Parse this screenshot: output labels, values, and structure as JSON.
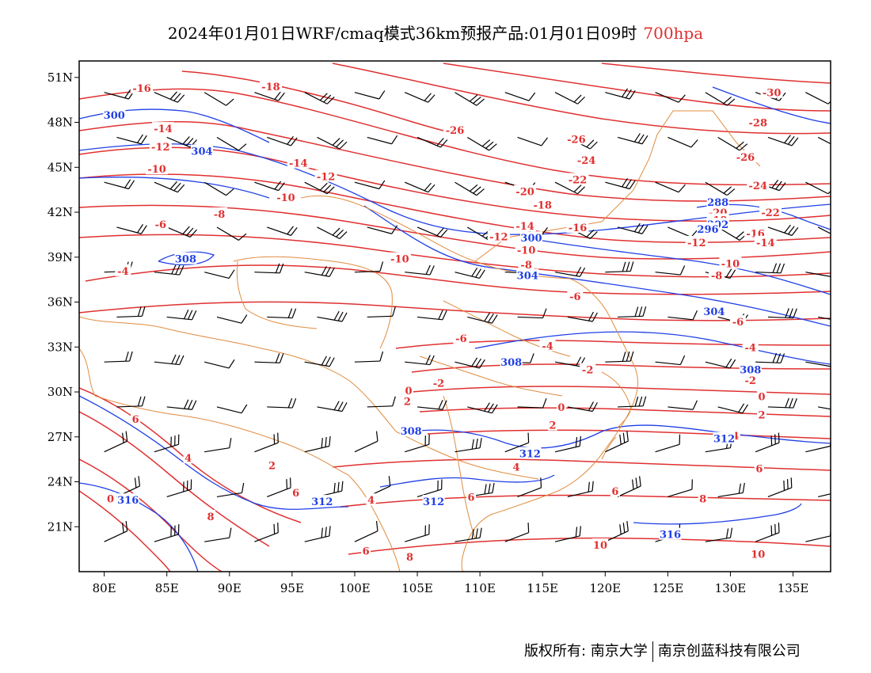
{
  "title": {
    "main": "2024年01月01日WRF/cmaq模式36km预报产品:01月01日09时",
    "level": "700hpa"
  },
  "colors": {
    "temperature": "#e03030",
    "height": "#1f3fe6",
    "boundary": "#e08c40",
    "wind": "#000000"
  },
  "axes": {
    "lon_ticks": [
      "80E",
      "85E",
      "90E",
      "95E",
      "100E",
      "105E",
      "110E",
      "115E",
      "120E",
      "125E",
      "130E",
      "135E"
    ],
    "lat_ticks": [
      "51N",
      "48N",
      "45N",
      "42N",
      "39N",
      "36N",
      "33N",
      "30N",
      "27N",
      "24N",
      "21N"
    ]
  },
  "extent": {
    "lon_min": 78,
    "lon_max": 138,
    "lat_min": 18,
    "lat_max": 52.1
  },
  "temperature_contours": [
    {
      "label": "-30",
      "lon": 133.3,
      "lat": 50.0
    },
    {
      "label": "-28",
      "lon": 132.2,
      "lat": 48.0
    },
    {
      "label": "-26",
      "lon": 131.2,
      "lat": 45.7
    },
    {
      "label": "-24",
      "lon": 132.2,
      "lat": 43.8
    },
    {
      "label": "-22",
      "lon": 133.2,
      "lat": 42.0
    },
    {
      "label": "-20",
      "lon": 129.0,
      "lat": 42.0
    },
    {
      "label": "-18",
      "lon": 129.0,
      "lat": 41.5
    },
    {
      "label": "-16",
      "lon": 132.0,
      "lat": 40.6
    },
    {
      "label": "-14",
      "lon": 132.8,
      "lat": 40.0
    },
    {
      "label": "-12",
      "lon": 127.3,
      "lat": 40.0
    },
    {
      "label": "-10",
      "lon": 130.0,
      "lat": 38.6
    },
    {
      "label": "-8",
      "lon": 128.9,
      "lat": 37.8
    },
    {
      "label": "-6",
      "lon": 130.6,
      "lat": 34.7
    },
    {
      "label": "-4",
      "lon": 131.6,
      "lat": 33.0
    },
    {
      "label": "-2",
      "lon": 131.6,
      "lat": 30.8
    },
    {
      "label": "0",
      "lon": 132.5,
      "lat": 29.7
    },
    {
      "label": "2",
      "lon": 132.5,
      "lat": 28.5
    },
    {
      "label": "4",
      "lon": 130.4,
      "lat": 27.1
    },
    {
      "label": "6",
      "lon": 132.3,
      "lat": 24.9
    },
    {
      "label": "8",
      "lon": 127.8,
      "lat": 22.9
    },
    {
      "label": "10",
      "lon": 132.2,
      "lat": 19.2
    },
    {
      "label": "-18",
      "lon": 93.3,
      "lat": 50.4
    },
    {
      "label": "-16",
      "lon": 83.0,
      "lat": 50.3
    },
    {
      "label": "-14",
      "lon": 84.7,
      "lat": 47.6
    },
    {
      "label": "-12",
      "lon": 84.5,
      "lat": 46.4
    },
    {
      "label": "-10",
      "lon": 84.2,
      "lat": 44.9
    },
    {
      "label": "-8",
      "lon": 89.2,
      "lat": 41.9
    },
    {
      "label": "-6",
      "lon": 84.5,
      "lat": 41.2
    },
    {
      "label": "-4",
      "lon": 81.5,
      "lat": 38.1
    },
    {
      "label": "-14",
      "lon": 95.5,
      "lat": 45.3
    },
    {
      "label": "-12",
      "lon": 97.7,
      "lat": 44.4
    },
    {
      "label": "-10",
      "lon": 94.5,
      "lat": 43.0
    },
    {
      "label": "-10",
      "lon": 103.6,
      "lat": 38.9
    },
    {
      "label": "-26",
      "lon": 108.0,
      "lat": 47.5
    },
    {
      "label": "-26",
      "lon": 117.7,
      "lat": 46.9
    },
    {
      "label": "-24",
      "lon": 118.5,
      "lat": 45.5
    },
    {
      "label": "-22",
      "lon": 117.8,
      "lat": 44.2
    },
    {
      "label": "-20",
      "lon": 113.6,
      "lat": 43.4
    },
    {
      "label": "-18",
      "lon": 115.0,
      "lat": 42.5
    },
    {
      "label": "-16",
      "lon": 117.8,
      "lat": 41.0
    },
    {
      "label": "-14",
      "lon": 113.6,
      "lat": 41.1
    },
    {
      "label": "-12",
      "lon": 111.5,
      "lat": 40.4
    },
    {
      "label": "-10",
      "lon": 113.7,
      "lat": 39.5
    },
    {
      "label": "-8",
      "lon": 113.7,
      "lat": 38.5
    },
    {
      "label": "-6",
      "lon": 117.6,
      "lat": 36.4
    },
    {
      "label": "-4",
      "lon": 115.4,
      "lat": 33.1
    },
    {
      "label": "-2",
      "lon": 118.6,
      "lat": 31.5
    },
    {
      "label": "-2",
      "lon": 106.7,
      "lat": 30.6
    },
    {
      "label": "0",
      "lon": 104.3,
      "lat": 30.1
    },
    {
      "label": "0",
      "lon": 116.5,
      "lat": 29.0
    },
    {
      "label": "2",
      "lon": 104.2,
      "lat": 29.4
    },
    {
      "label": "2",
      "lon": 115.8,
      "lat": 27.8
    },
    {
      "label": "-6",
      "lon": 108.5,
      "lat": 33.6
    },
    {
      "label": "4",
      "lon": 112.9,
      "lat": 25.0
    },
    {
      "label": "4",
      "lon": 101.3,
      "lat": 22.8
    },
    {
      "label": "4",
      "lon": 86.7,
      "lat": 25.6
    },
    {
      "label": "2",
      "lon": 93.4,
      "lat": 25.1
    },
    {
      "label": "6",
      "lon": 95.3,
      "lat": 23.3
    },
    {
      "label": "6",
      "lon": 109.3,
      "lat": 23.0
    },
    {
      "label": "6",
      "lon": 82.5,
      "lat": 28.2
    },
    {
      "label": "6",
      "lon": 120.8,
      "lat": 23.4
    },
    {
      "label": "8",
      "lon": 88.5,
      "lat": 21.7
    },
    {
      "label": "8",
      "lon": 104.4,
      "lat": 19.0
    },
    {
      "label": "6",
      "lon": 100.9,
      "lat": 19.4
    },
    {
      "label": "0",
      "lon": 80.5,
      "lat": 22.9
    },
    {
      "label": "10",
      "lon": 119.6,
      "lat": 19.8
    }
  ],
  "height_contours": [
    {
      "label": "300",
      "lon": 80.8,
      "lat": 48.5
    },
    {
      "label": "304",
      "lon": 87.8,
      "lat": 46.1
    },
    {
      "label": "308",
      "lon": 86.5,
      "lat": 38.9
    },
    {
      "label": "300",
      "lon": 114.1,
      "lat": 40.3
    },
    {
      "label": "304",
      "lon": 113.8,
      "lat": 37.8
    },
    {
      "label": "288",
      "lon": 129.0,
      "lat": 42.7
    },
    {
      "label": "292",
      "lon": 129.0,
      "lat": 41.2
    },
    {
      "label": "296",
      "lon": 128.2,
      "lat": 40.9
    },
    {
      "label": "304",
      "lon": 128.7,
      "lat": 35.4
    },
    {
      "label": "308",
      "lon": 112.5,
      "lat": 32.0
    },
    {
      "label": "308",
      "lon": 131.6,
      "lat": 31.5
    },
    {
      "label": "308",
      "lon": 104.5,
      "lat": 27.4
    },
    {
      "label": "312",
      "lon": 114.0,
      "lat": 25.9
    },
    {
      "label": "312",
      "lon": 97.4,
      "lat": 22.7
    },
    {
      "label": "312",
      "lon": 106.3,
      "lat": 22.7
    },
    {
      "label": "312",
      "lon": 129.5,
      "lat": 26.9
    },
    {
      "label": "316",
      "lon": 81.9,
      "lat": 22.8
    },
    {
      "label": "316",
      "lon": 125.2,
      "lat": 20.5
    }
  ],
  "footer": {
    "left": "版权所有: 南京大学",
    "right": "南京创蓝科技有限公司"
  }
}
